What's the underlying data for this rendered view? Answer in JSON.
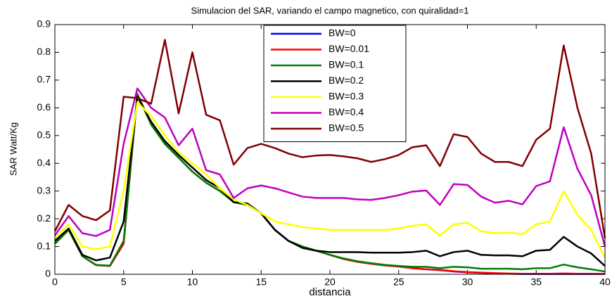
{
  "chart_data": {
    "type": "line",
    "title": "Simulacion del SAR, variando el campo magnetico, con quiralidad=1",
    "xlabel": "distancia",
    "ylabel": "SAR Watt/Kg",
    "x": [
      0,
      1,
      2,
      3,
      4,
      5,
      6,
      7,
      8,
      9,
      10,
      11,
      12,
      13,
      14,
      15,
      16,
      17,
      18,
      19,
      20,
      21,
      22,
      23,
      24,
      25,
      26,
      27,
      28,
      29,
      30,
      31,
      32,
      33,
      34,
      35,
      36,
      37,
      38,
      39,
      40
    ],
    "xlim": [
      0,
      40
    ],
    "xticks": [
      0,
      5,
      10,
      15,
      20,
      25,
      30,
      35,
      40
    ],
    "ylim": [
      0,
      0.9
    ],
    "yticks": [
      0,
      0.1,
      0.2,
      0.3,
      0.4,
      0.5,
      0.6,
      0.7,
      0.8,
      0.9
    ],
    "legend": "north",
    "series": [
      {
        "name": "BW=0",
        "color": "#0000ff",
        "values": [
          0.11,
          0.16,
          0.065,
          0.033,
          0.03,
          0.11,
          0.65,
          0.54,
          0.47,
          0.42,
          0.37,
          0.33,
          0.3,
          0.26,
          0.25,
          0.22,
          0.16,
          0.12,
          0.1,
          0.085,
          0.07,
          0.055,
          0.045,
          0.038,
          0.032,
          0.028,
          0.022,
          0.018,
          0.015,
          0.01,
          0.007,
          0.005,
          0.003,
          0.002,
          0.001,
          0.001,
          0.001,
          0.001,
          0.001,
          0.001,
          0.001
        ]
      },
      {
        "name": "BW=0.01",
        "color": "#ff0000",
        "values": [
          0.11,
          0.16,
          0.065,
          0.033,
          0.03,
          0.11,
          0.65,
          0.54,
          0.47,
          0.42,
          0.37,
          0.33,
          0.3,
          0.26,
          0.25,
          0.22,
          0.16,
          0.12,
          0.1,
          0.085,
          0.07,
          0.055,
          0.045,
          0.038,
          0.032,
          0.028,
          0.022,
          0.018,
          0.016,
          0.011,
          0.008,
          0.006,
          0.004,
          0.003,
          0.002,
          0.002,
          0.002,
          0.003,
          0.002,
          0.002,
          0.001
        ]
      },
      {
        "name": "BW=0.1",
        "color": "#008000",
        "values": [
          0.11,
          0.16,
          0.065,
          0.034,
          0.031,
          0.12,
          0.65,
          0.54,
          0.47,
          0.42,
          0.37,
          0.33,
          0.3,
          0.26,
          0.25,
          0.22,
          0.16,
          0.12,
          0.1,
          0.085,
          0.07,
          0.057,
          0.047,
          0.04,
          0.034,
          0.03,
          0.027,
          0.027,
          0.022,
          0.027,
          0.025,
          0.02,
          0.02,
          0.02,
          0.018,
          0.022,
          0.022,
          0.035,
          0.025,
          0.018,
          0.01
        ]
      },
      {
        "name": "BW=0.2",
        "color": "#000000",
        "values": [
          0.12,
          0.165,
          0.07,
          0.05,
          0.06,
          0.19,
          0.64,
          0.55,
          0.48,
          0.43,
          0.385,
          0.34,
          0.31,
          0.26,
          0.255,
          0.22,
          0.16,
          0.12,
          0.095,
          0.085,
          0.08,
          0.08,
          0.08,
          0.078,
          0.078,
          0.078,
          0.08,
          0.085,
          0.065,
          0.08,
          0.085,
          0.07,
          0.068,
          0.068,
          0.065,
          0.085,
          0.088,
          0.135,
          0.1,
          0.075,
          0.03
        ]
      },
      {
        "name": "BW=0.3",
        "color": "#ffff00",
        "values": [
          0.13,
          0.18,
          0.1,
          0.09,
          0.1,
          0.3,
          0.62,
          0.57,
          0.5,
          0.44,
          0.4,
          0.36,
          0.31,
          0.27,
          0.25,
          0.22,
          0.19,
          0.18,
          0.17,
          0.165,
          0.16,
          0.16,
          0.16,
          0.16,
          0.16,
          0.165,
          0.175,
          0.18,
          0.14,
          0.18,
          0.185,
          0.155,
          0.148,
          0.15,
          0.145,
          0.18,
          0.19,
          0.3,
          0.215,
          0.16,
          0.06
        ]
      },
      {
        "name": "BW=0.4",
        "color": "#bf00bf",
        "values": [
          0.14,
          0.21,
          0.148,
          0.138,
          0.16,
          0.47,
          0.67,
          0.6,
          0.565,
          0.465,
          0.525,
          0.375,
          0.36,
          0.275,
          0.31,
          0.32,
          0.31,
          0.295,
          0.28,
          0.275,
          0.275,
          0.275,
          0.27,
          0.268,
          0.275,
          0.285,
          0.298,
          0.302,
          0.25,
          0.325,
          0.322,
          0.28,
          0.258,
          0.265,
          0.252,
          0.318,
          0.335,
          0.53,
          0.38,
          0.285,
          0.1
        ]
      },
      {
        "name": "BW=0.5",
        "color": "#800000",
        "values": [
          0.155,
          0.25,
          0.21,
          0.195,
          0.23,
          0.64,
          0.635,
          0.615,
          0.845,
          0.58,
          0.8,
          0.575,
          0.555,
          0.395,
          0.455,
          0.47,
          0.455,
          0.435,
          0.422,
          0.428,
          0.43,
          0.425,
          0.418,
          0.405,
          0.415,
          0.43,
          0.458,
          0.465,
          0.39,
          0.505,
          0.495,
          0.435,
          0.405,
          0.405,
          0.39,
          0.485,
          0.525,
          0.825,
          0.6,
          0.435,
          0.13
        ]
      }
    ]
  }
}
